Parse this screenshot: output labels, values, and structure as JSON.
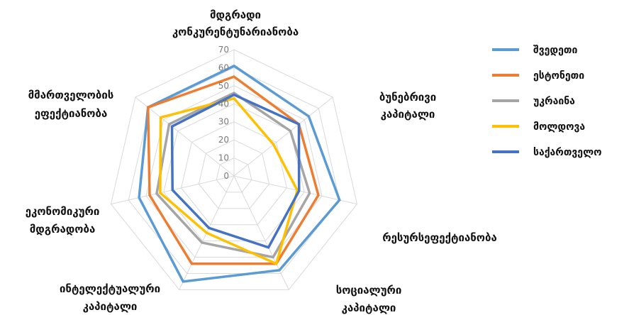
{
  "chart_data": {
    "type": "radar",
    "title": "",
    "axes": [
      [
        "მდგრადი",
        "კონკურენტუნარიანობა"
      ],
      [
        "ბუნებრივი",
        "კაპიტალი"
      ],
      [
        "რესურსეფექტიანობა"
      ],
      [
        "სოციალური",
        "კაპიტალი"
      ],
      [
        "ინტელექტუალური",
        "კაპიტალი"
      ],
      [
        "ეკონომიკური",
        "მდგრადობა"
      ],
      [
        "მმართველობის",
        "ეფექტიანობა"
      ]
    ],
    "ticks": [
      0,
      10,
      20,
      30,
      40,
      50,
      60,
      70
    ],
    "rlim": [
      0,
      70
    ],
    "legend_position": "right",
    "series": [
      {
        "name": "შვედეთი",
        "color": "#5b9bd5",
        "values": [
          61,
          53,
          60,
          58,
          65,
          54,
          61
        ]
      },
      {
        "name": "ესტონეთი",
        "color": "#ed7d31",
        "values": [
          55,
          46,
          48,
          54,
          54,
          48,
          61
        ]
      },
      {
        "name": "უკრაინა",
        "color": "#a5a5a5",
        "values": [
          46,
          40,
          43,
          50,
          41,
          44,
          46
        ]
      },
      {
        "name": "მოლდოვა",
        "color": "#ffc000",
        "values": [
          43,
          28,
          36,
          54,
          35,
          42,
          52
        ]
      },
      {
        "name": "საქართველო",
        "color": "#4472c4",
        "values": [
          45,
          46,
          37,
          44,
          32,
          35,
          44
        ]
      }
    ]
  }
}
